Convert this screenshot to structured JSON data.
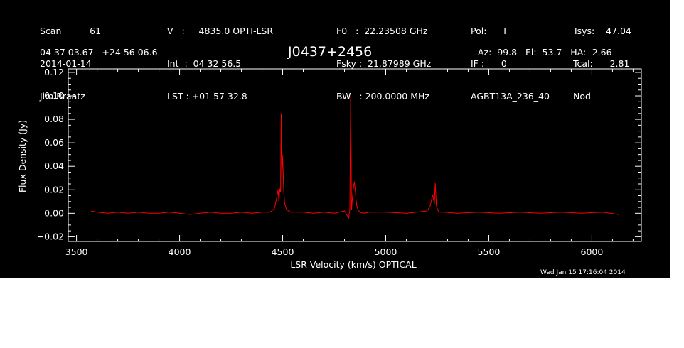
{
  "header": {
    "col1": [
      "Scan          61",
      "2014-01-14",
      "Jim Braatz"
    ],
    "col2": [
      "V   :     4835.0 OPTI-LSR",
      "Int  :  04 32 56.5",
      "LST : +01 57 32.8"
    ],
    "col3": [
      "F0   :  22.23508 GHz",
      "Fsky :  21.87989 GHz",
      "BW   : 200.0000 MHz"
    ],
    "col4": [
      "Pol:      I",
      "IF :      0",
      "AGBT13A_236_40"
    ],
    "col5": [
      "Tsys:    47.04",
      "Tcal:      2.81",
      "Nod"
    ],
    "coords": "04 37 03.67   +24 56 06.6",
    "source": "J0437+2456",
    "azel": "Az:  99.8   El:  53.7   HA: -2.66",
    "datestamp": "Wed Jan 15 17:16:04 2014"
  },
  "chart_data": {
    "type": "line",
    "title": "J0437+2456",
    "xlabel": "LSR Velocity (km/s) OPTICAL",
    "ylabel": "Flux Density (Jy)",
    "xlim": [
      3460,
      6240
    ],
    "ylim": [
      -0.024,
      0.123
    ],
    "xticks": [
      3500,
      4000,
      4500,
      5000,
      5500,
      6000
    ],
    "xtick_labels": [
      "3500",
      "4000",
      "4500",
      "5000",
      "5500",
      "6000"
    ],
    "yticks": [
      -0.02,
      0.0,
      0.02,
      0.04,
      0.06,
      0.08,
      0.1,
      0.12
    ],
    "ytick_labels": [
      "−0.02",
      "0.00",
      "0.02",
      "0.04",
      "0.06",
      "0.08",
      "0.10",
      "0.12"
    ],
    "grid": false,
    "line_color": "#ff0000",
    "axis_color": "#ffffff",
    "series": [
      {
        "x": [
          3570,
          3600,
          3650,
          3700,
          3750,
          3800,
          3850,
          3900,
          3950,
          4000,
          4050,
          4100,
          4150,
          4200,
          4250,
          4300,
          4350,
          4400,
          4440,
          4460,
          4470,
          4478,
          4482,
          4486,
          4490,
          4493,
          4496,
          4499,
          4502,
          4505,
          4510,
          4520,
          4540,
          4600,
          4650,
          4700,
          4750,
          4800,
          4820,
          4826,
          4830,
          4834,
          4838,
          4842,
          4848,
          4852,
          4856,
          4860,
          4866,
          4875,
          4890,
          4920,
          5000,
          5100,
          5150,
          5200,
          5215,
          5228,
          5236,
          5240,
          5246,
          5250,
          5255,
          5262,
          5280,
          5350,
          5450,
          5550,
          5650,
          5750,
          5850,
          5950,
          6050,
          6130
        ],
        "y": [
          0.002,
          0.001,
          0.0,
          0.001,
          0.0,
          0.001,
          0.0,
          0.0,
          0.001,
          0.0,
          -0.001,
          0.0,
          0.001,
          0.0,
          0.0,
          0.001,
          0.0,
          0.001,
          0.001,
          0.004,
          0.012,
          0.02,
          0.01,
          0.021,
          0.018,
          0.085,
          0.03,
          0.05,
          0.038,
          0.02,
          0.008,
          0.003,
          0.001,
          0.001,
          0.0,
          0.001,
          0.0,
          0.002,
          -0.004,
          0.003,
          0.1,
          0.003,
          0.012,
          0.02,
          0.027,
          0.02,
          0.012,
          0.006,
          0.003,
          0.001,
          0.0,
          0.001,
          0.001,
          0.0,
          0.001,
          0.002,
          0.006,
          0.016,
          0.008,
          0.026,
          0.006,
          0.004,
          0.002,
          0.001,
          0.001,
          0.0,
          0.001,
          0.0,
          0.001,
          0.0,
          0.001,
          0.0,
          0.001,
          -0.001
        ]
      }
    ]
  }
}
